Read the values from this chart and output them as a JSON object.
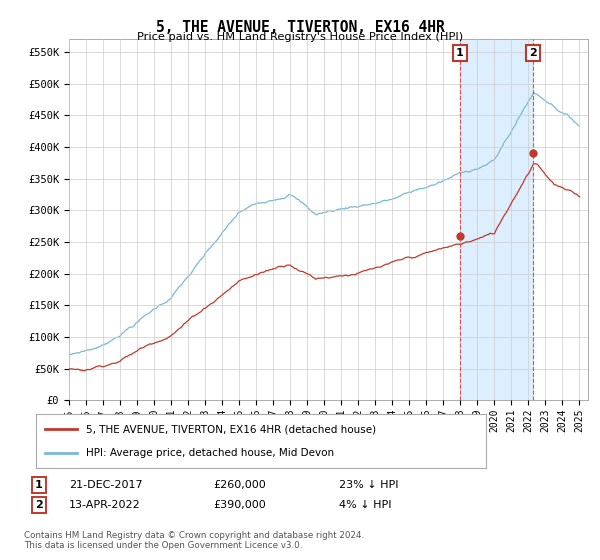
{
  "title": "5, THE AVENUE, TIVERTON, EX16 4HR",
  "subtitle": "Price paid vs. HM Land Registry's House Price Index (HPI)",
  "ylabel_ticks": [
    "£0",
    "£50K",
    "£100K",
    "£150K",
    "£200K",
    "£250K",
    "£300K",
    "£350K",
    "£400K",
    "£450K",
    "£500K",
    "£550K"
  ],
  "ytick_values": [
    0,
    50000,
    100000,
    150000,
    200000,
    250000,
    300000,
    350000,
    400000,
    450000,
    500000,
    550000
  ],
  "ylim": [
    0,
    570000
  ],
  "xlim_start": 1995.0,
  "xlim_end": 2025.5,
  "xtick_labels": [
    "1995",
    "1996",
    "1997",
    "1998",
    "1999",
    "2000",
    "2001",
    "2002",
    "2003",
    "2004",
    "2005",
    "2006",
    "2007",
    "2008",
    "2009",
    "2010",
    "2011",
    "2012",
    "2013",
    "2014",
    "2015",
    "2016",
    "2017",
    "2018",
    "2019",
    "2020",
    "2021",
    "2022",
    "2023",
    "2024",
    "2025"
  ],
  "hpi_color": "#7ab8d4",
  "price_color": "#c0392b",
  "vline_color": "#e05050",
  "annotation_box_color": "#c0392b",
  "marker1_date": 2017.97,
  "marker2_date": 2022.28,
  "marker1_price": 260000,
  "marker2_price": 390000,
  "legend_label1": "5, THE AVENUE, TIVERTON, EX16 4HR (detached house)",
  "legend_label2": "HPI: Average price, detached house, Mid Devon",
  "footnote": "Contains HM Land Registry data © Crown copyright and database right 2024.\nThis data is licensed under the Open Government Licence v3.0.",
  "background_color": "#ffffff",
  "grid_color": "#cccccc",
  "span_color": "#ddeeff"
}
